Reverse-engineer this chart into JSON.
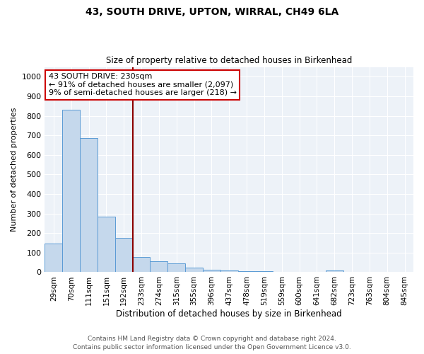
{
  "title1": "43, SOUTH DRIVE, UPTON, WIRRAL, CH49 6LA",
  "title2": "Size of property relative to detached houses in Birkenhead",
  "xlabel": "Distribution of detached houses by size in Birkenhead",
  "ylabel": "Number of detached properties",
  "categories": [
    "29sqm",
    "70sqm",
    "111sqm",
    "151sqm",
    "192sqm",
    "233sqm",
    "274sqm",
    "315sqm",
    "355sqm",
    "396sqm",
    "437sqm",
    "478sqm",
    "519sqm",
    "559sqm",
    "600sqm",
    "641sqm",
    "682sqm",
    "723sqm",
    "763sqm",
    "804sqm",
    "845sqm"
  ],
  "values": [
    148,
    830,
    688,
    284,
    174,
    78,
    55,
    45,
    22,
    14,
    9,
    7,
    7,
    0,
    0,
    0,
    9,
    0,
    0,
    0,
    0
  ],
  "bar_color": "#c5d8ec",
  "bar_edge_color": "#5b9bd5",
  "vline_x": 4.5,
  "annotation_title": "43 SOUTH DRIVE: 230sqm",
  "annotation_line1": "← 91% of detached houses are smaller (2,097)",
  "annotation_line2": "9% of semi-detached houses are larger (218) →",
  "vline_color": "#8b0000",
  "annotation_box_color": "#ffffff",
  "annotation_box_edge_color": "#cc0000",
  "footer1": "Contains HM Land Registry data © Crown copyright and database right 2024.",
  "footer2": "Contains public sector information licensed under the Open Government Licence v3.0.",
  "ylim": [
    0,
    1050
  ],
  "yticks": [
    0,
    100,
    200,
    300,
    400,
    500,
    600,
    700,
    800,
    900,
    1000
  ],
  "title1_fontsize": 10,
  "title2_fontsize": 8.5,
  "ylabel_fontsize": 8,
  "xlabel_fontsize": 8.5,
  "tick_fontsize": 8,
  "xtick_fontsize": 7.5,
  "footer_fontsize": 6.5,
  "ann_fontsize": 8
}
